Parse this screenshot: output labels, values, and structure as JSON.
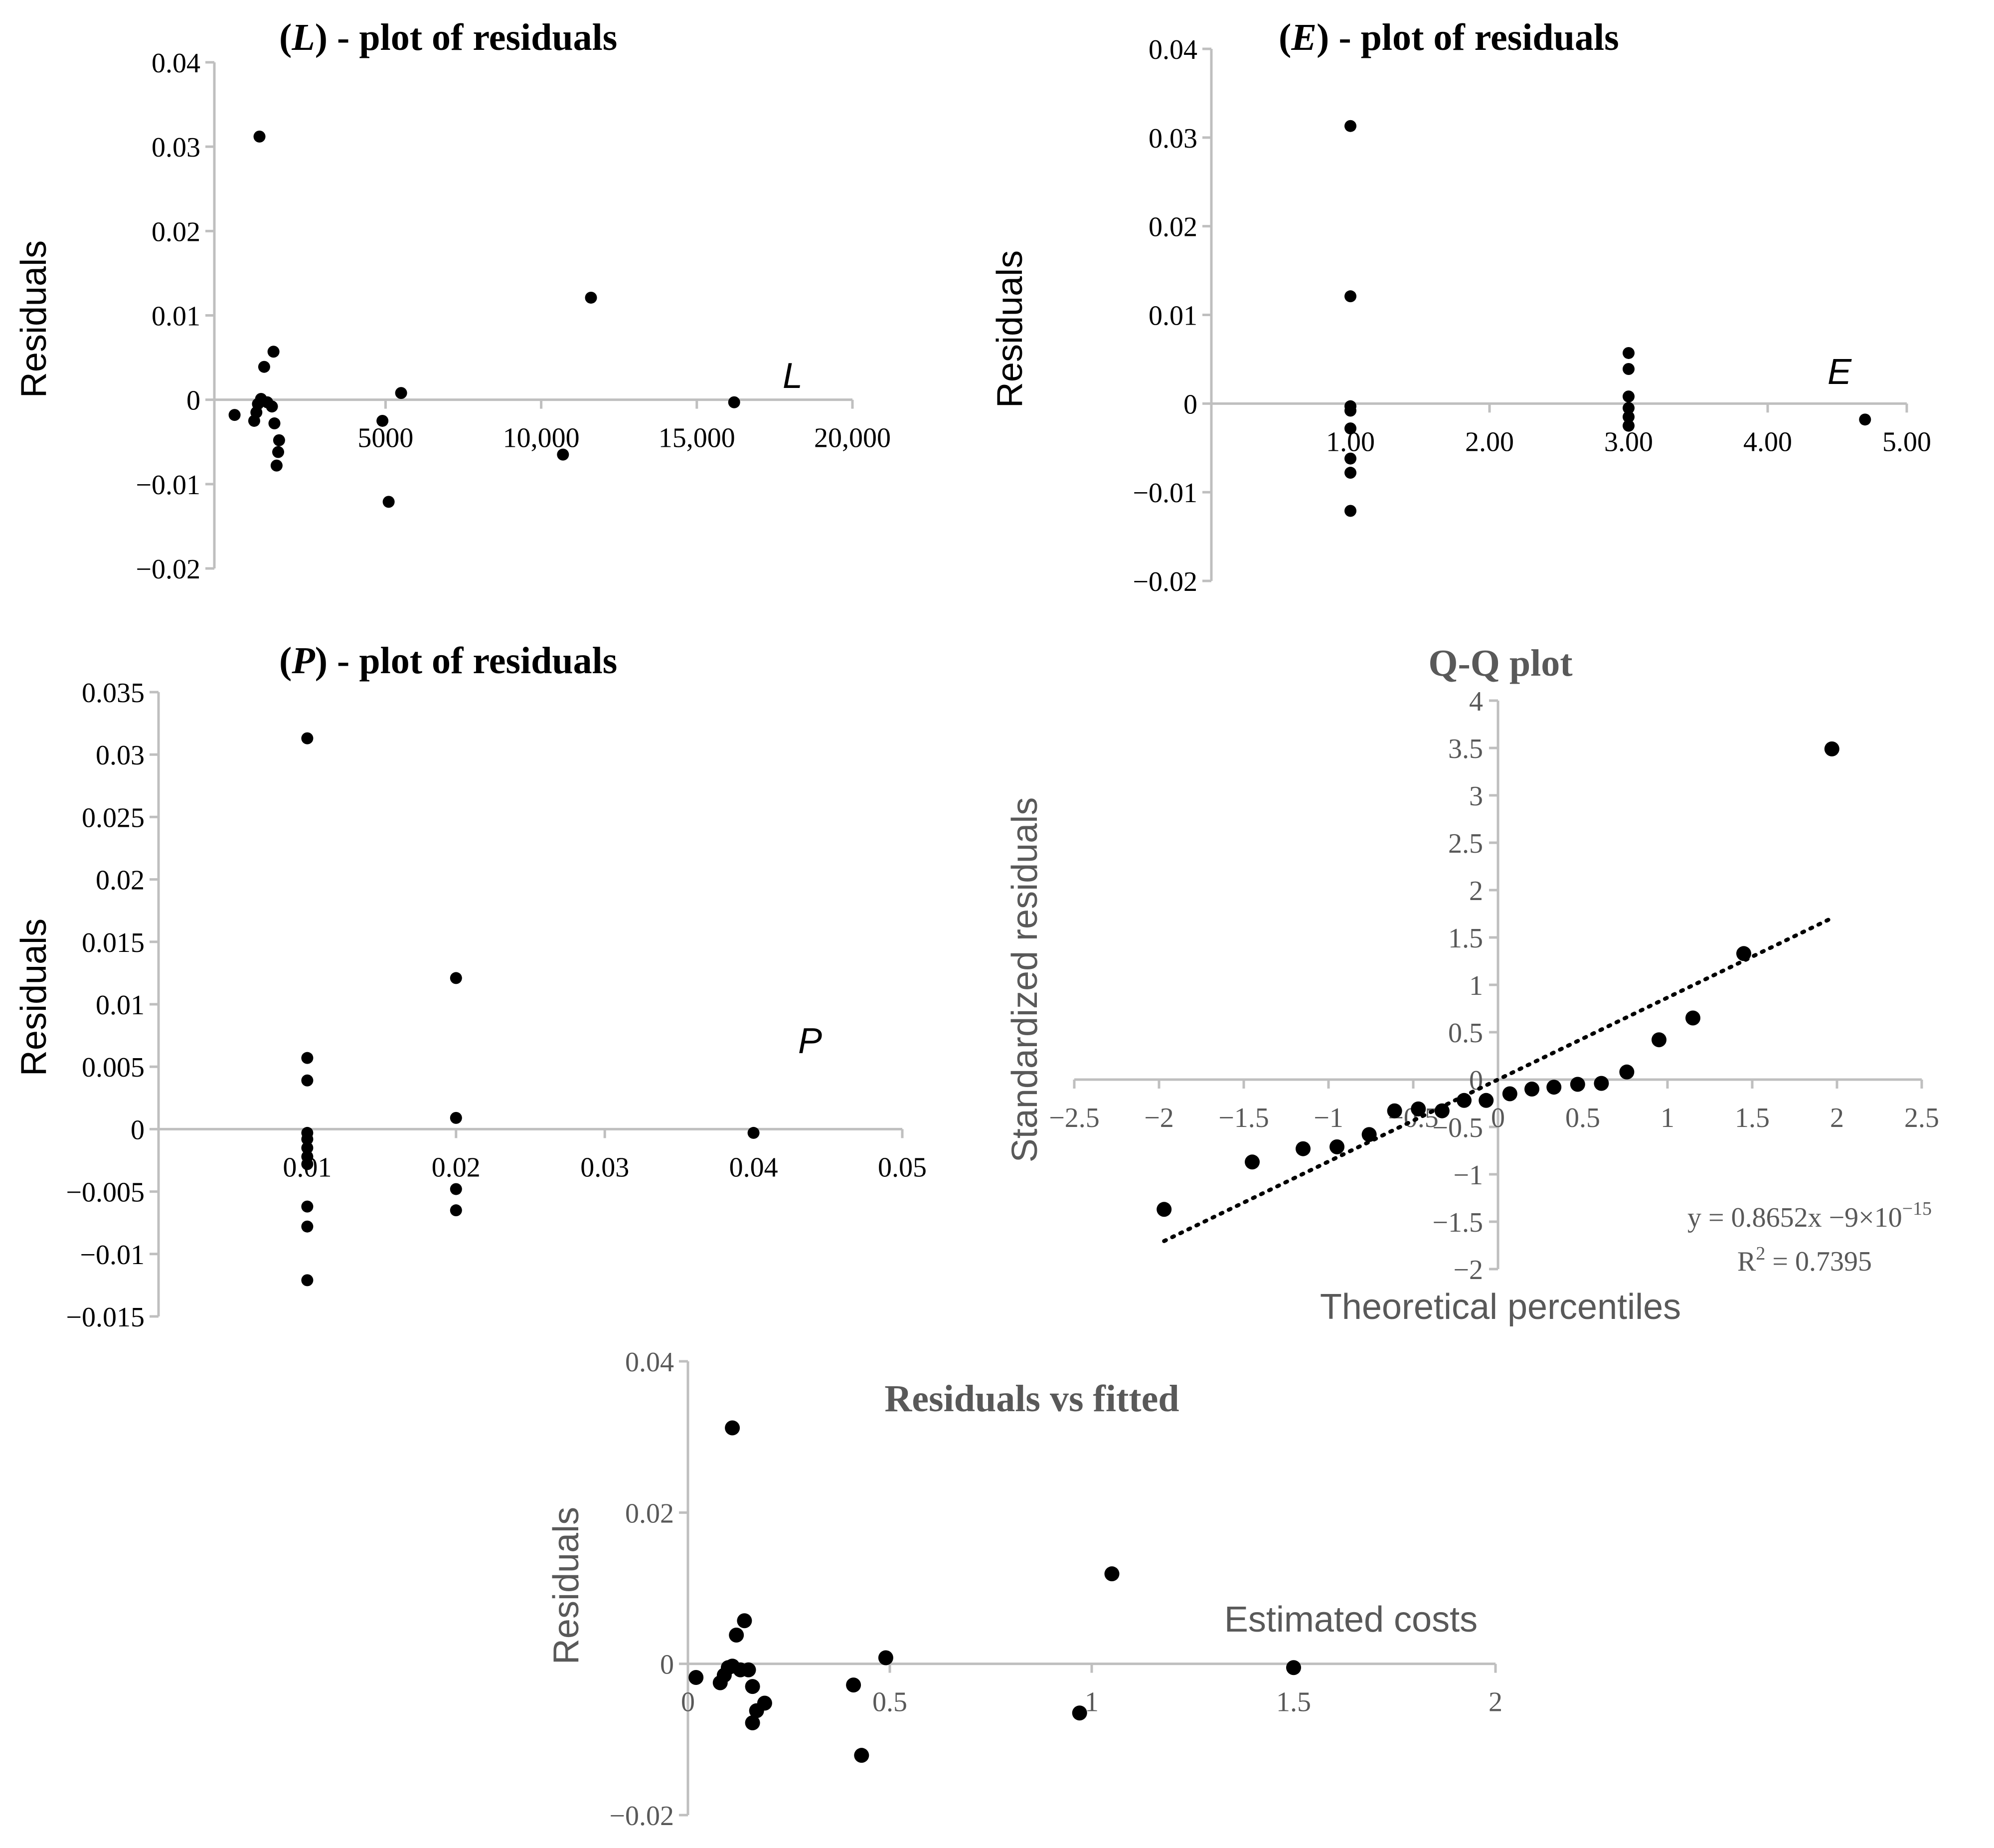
{
  "chart_data": [
    {
      "id": "L",
      "type": "scatter",
      "title_paren": "L",
      "title_rest": " - plot of residuals",
      "ylabel": "Residuals",
      "xlabel": "L",
      "xlim": [
        -500,
        20000
      ],
      "ylim": [
        -0.02,
        0.04
      ],
      "x_ticks": [
        "5000",
        "10,000",
        "15,000",
        "20,000"
      ],
      "y_ticks": [
        "0.04",
        "0.03",
        "0.02",
        "0.01",
        "0",
        "−0.01",
        "−0.02"
      ],
      "points": [
        {
          "x": 150,
          "y": -0.0018
        },
        {
          "x": 780,
          "y": -0.0025
        },
        {
          "x": 850,
          "y": -0.0015
        },
        {
          "x": 900,
          "y": -0.0005
        },
        {
          "x": 950,
          "y": 0.0312
        },
        {
          "x": 1000,
          "y": 0.0001
        },
        {
          "x": 1100,
          "y": 0.0039
        },
        {
          "x": 1200,
          "y": -0.0003
        },
        {
          "x": 1350,
          "y": -0.0008
        },
        {
          "x": 1400,
          "y": 0.0057
        },
        {
          "x": 1430,
          "y": -0.0028
        },
        {
          "x": 1500,
          "y": -0.0078
        },
        {
          "x": 1550,
          "y": -0.0062
        },
        {
          "x": 1580,
          "y": -0.0048
        },
        {
          "x": 4900,
          "y": -0.0025
        },
        {
          "x": 5100,
          "y": -0.0121
        },
        {
          "x": 5500,
          "y": 0.0008
        },
        {
          "x": 10700,
          "y": -0.0065
        },
        {
          "x": 11600,
          "y": 0.0121
        },
        {
          "x": 16200,
          "y": -0.0003
        }
      ]
    },
    {
      "id": "E",
      "type": "scatter",
      "title_paren": "E",
      "title_rest": " - plot of residuals",
      "ylabel": "Residuals",
      "xlabel": "E",
      "xlim": [
        0,
        5
      ],
      "ylim": [
        -0.02,
        0.04
      ],
      "x_ticks": [
        "1.00",
        "2.00",
        "3.00",
        "4.00",
        "5.00"
      ],
      "y_ticks": [
        "0.04",
        "0.03",
        "0.02",
        "0.01",
        "0",
        "−0.01",
        "−0.02"
      ],
      "points": [
        {
          "x": 1,
          "y": 0.0313
        },
        {
          "x": 1,
          "y": 0.0121
        },
        {
          "x": 1,
          "y": -0.0003
        },
        {
          "x": 1,
          "y": -0.0008
        },
        {
          "x": 1,
          "y": -0.0028
        },
        {
          "x": 1,
          "y": -0.0062
        },
        {
          "x": 1,
          "y": -0.0078
        },
        {
          "x": 1,
          "y": -0.0121
        },
        {
          "x": 3,
          "y": 0.0057
        },
        {
          "x": 3,
          "y": 0.0039
        },
        {
          "x": 3,
          "y": 0.0008
        },
        {
          "x": 3,
          "y": -0.0005
        },
        {
          "x": 3,
          "y": -0.0015
        },
        {
          "x": 3,
          "y": -0.0025
        },
        {
          "x": 4.7,
          "y": -0.0018
        }
      ]
    },
    {
      "id": "P",
      "type": "scatter",
      "title_paren": "P",
      "title_rest": " - plot of residuals",
      "ylabel": "Residuals",
      "xlabel": "P",
      "xlim": [
        0,
        0.05
      ],
      "ylim": [
        -0.015,
        0.035
      ],
      "x_ticks": [
        "0.01",
        "0.02",
        "0.03",
        "0.04",
        "0.05"
      ],
      "y_ticks": [
        "0.035",
        "0.03",
        "0.025",
        "0.02",
        "0.015",
        "0.01",
        "0.005",
        "0",
        "−0.005",
        "−0.01",
        "−0.015"
      ],
      "points": [
        {
          "x": 0.01,
          "y": 0.0313
        },
        {
          "x": 0.01,
          "y": 0.0057
        },
        {
          "x": 0.01,
          "y": 0.0039
        },
        {
          "x": 0.01,
          "y": -0.0003
        },
        {
          "x": 0.01,
          "y": -0.0008
        },
        {
          "x": 0.01,
          "y": -0.0015
        },
        {
          "x": 0.01,
          "y": -0.0022
        },
        {
          "x": 0.01,
          "y": -0.0028
        },
        {
          "x": 0.01,
          "y": -0.0062
        },
        {
          "x": 0.01,
          "y": -0.0078
        },
        {
          "x": 0.01,
          "y": -0.0121
        },
        {
          "x": 0.02,
          "y": 0.0121
        },
        {
          "x": 0.02,
          "y": 0.0009
        },
        {
          "x": 0.02,
          "y": -0.0048
        },
        {
          "x": 0.02,
          "y": -0.0065
        },
        {
          "x": 0.04,
          "y": -0.0003
        }
      ]
    },
    {
      "id": "QQ",
      "type": "scatter",
      "title": "Q-Q plot",
      "ylabel": "Standardized residuals",
      "xlabel": "Theoretical percentiles",
      "xlim": [
        -2.5,
        2.5
      ],
      "ylim": [
        -2,
        4
      ],
      "x_ticks": [
        "−2.5",
        "−2",
        "−1.5",
        "−1",
        "−0.5",
        "0",
        "0.5",
        "1",
        "1.5",
        "2",
        "2.5"
      ],
      "y_ticks": [
        "4",
        "3.5",
        "3",
        "2.5",
        "2",
        "1.5",
        "1",
        "0.5",
        "0",
        "−0.5",
        "−1",
        "−1.5",
        "−2"
      ],
      "trendline": {
        "slope": 0.8652,
        "intercept": 0,
        "x_range": [
          -1.97,
          1.97
        ]
      },
      "equation": "y = 0.8652x −9×10",
      "equation_exp": "−15",
      "r2_label": "R",
      "r2_value": " = 0.7395",
      "points": [
        {
          "x": -1.97,
          "y": -1.37
        },
        {
          "x": -1.45,
          "y": -0.87
        },
        {
          "x": -1.15,
          "y": -0.73
        },
        {
          "x": -0.95,
          "y": -0.71
        },
        {
          "x": -0.76,
          "y": -0.58
        },
        {
          "x": -0.61,
          "y": -0.33
        },
        {
          "x": -0.47,
          "y": -0.31
        },
        {
          "x": -0.33,
          "y": -0.33
        },
        {
          "x": -0.2,
          "y": -0.22
        },
        {
          "x": -0.07,
          "y": -0.22
        },
        {
          "x": 0.07,
          "y": -0.15
        },
        {
          "x": 0.2,
          "y": -0.1
        },
        {
          "x": 0.33,
          "y": -0.08
        },
        {
          "x": 0.47,
          "y": -0.05
        },
        {
          "x": 0.61,
          "y": -0.04
        },
        {
          "x": 0.76,
          "y": 0.08
        },
        {
          "x": 0.95,
          "y": 0.42
        },
        {
          "x": 1.15,
          "y": 0.65
        },
        {
          "x": 1.45,
          "y": 1.33
        },
        {
          "x": 1.97,
          "y": 3.49
        }
      ]
    },
    {
      "id": "RF",
      "type": "scatter",
      "title": "Residuals vs fitted",
      "ylabel": "Residuals",
      "xlabel": "Estimated costs",
      "xlim": [
        0,
        2
      ],
      "ylim": [
        -0.02,
        0.04
      ],
      "x_ticks": [
        "0",
        "0.5",
        "1",
        "1.5",
        "2"
      ],
      "y_ticks": [
        "0.04",
        "0.02",
        "0",
        "−0.02"
      ],
      "points": [
        {
          "x": 0.02,
          "y": -0.0018
        },
        {
          "x": 0.08,
          "y": -0.0025
        },
        {
          "x": 0.09,
          "y": -0.0015
        },
        {
          "x": 0.1,
          "y": -0.0005
        },
        {
          "x": 0.11,
          "y": 0.0312
        },
        {
          "x": 0.11,
          "y": -0.0003
        },
        {
          "x": 0.12,
          "y": 0.0038
        },
        {
          "x": 0.13,
          "y": -0.0008
        },
        {
          "x": 0.14,
          "y": 0.0057
        },
        {
          "x": 0.15,
          "y": -0.0008
        },
        {
          "x": 0.16,
          "y": -0.003
        },
        {
          "x": 0.16,
          "y": -0.0078
        },
        {
          "x": 0.17,
          "y": -0.0062
        },
        {
          "x": 0.19,
          "y": -0.0052
        },
        {
          "x": 0.41,
          "y": -0.0028
        },
        {
          "x": 0.43,
          "y": -0.0121
        },
        {
          "x": 0.49,
          "y": 0.0008
        },
        {
          "x": 0.97,
          "y": -0.0065
        },
        {
          "x": 1.05,
          "y": 0.0119
        },
        {
          "x": 1.5,
          "y": -0.0005
        }
      ]
    }
  ]
}
